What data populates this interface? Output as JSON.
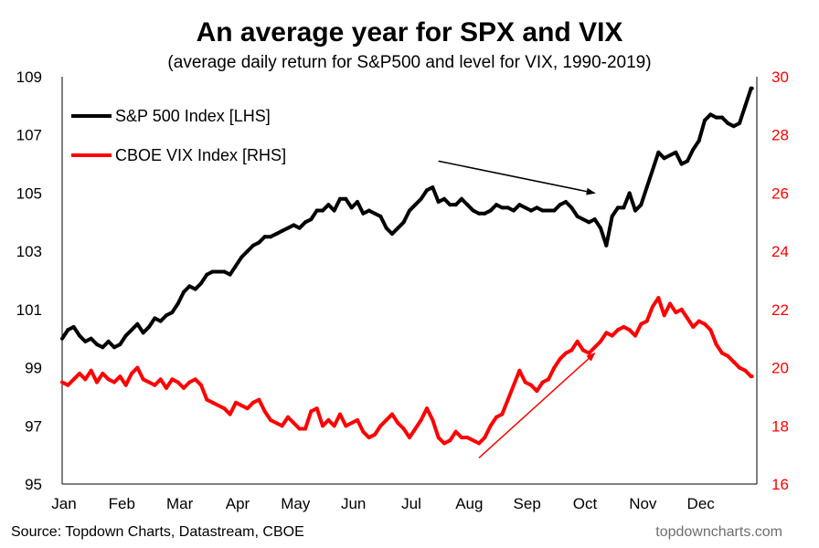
{
  "chart_data": {
    "type": "line",
    "title": "An average year for SPX and VIX",
    "subtitle": "(average daily return for S&P500 and level for VIX, 1990-2019)",
    "source": "Source: Topdown Charts, Datastream, CBOE",
    "watermark": "topdowncharts.com",
    "x_ticks": [
      "Jan",
      "Feb",
      "Mar",
      "Apr",
      "May",
      "Jun",
      "Jul",
      "Aug",
      "Sep",
      "Oct",
      "Nov",
      "Dec"
    ],
    "y_left": {
      "ticks": [
        "95",
        "97",
        "99",
        "101",
        "103",
        "105",
        "107",
        "109"
      ],
      "range": [
        95,
        109
      ]
    },
    "y_right": {
      "ticks": [
        "16",
        "18",
        "20",
        "22",
        "24",
        "26",
        "28",
        "30"
      ],
      "range": [
        16,
        30
      ]
    },
    "legend_placement": "top-left",
    "colors": {
      "spx": "#000000",
      "vix": "#ff0000"
    },
    "series": [
      {
        "name": "S&P 500 Index [LHS]",
        "axis": "left",
        "x": [
          0,
          0.1,
          0.2,
          0.3,
          0.4,
          0.5,
          0.6,
          0.7,
          0.8,
          0.9,
          1.0,
          1.1,
          1.2,
          1.3,
          1.4,
          1.5,
          1.6,
          1.7,
          1.8,
          1.9,
          2.0,
          2.1,
          2.2,
          2.3,
          2.4,
          2.5,
          2.6,
          2.7,
          2.8,
          2.9,
          3.0,
          3.1,
          3.2,
          3.3,
          3.4,
          3.5,
          3.6,
          3.7,
          3.8,
          3.9,
          4.0,
          4.1,
          4.2,
          4.3,
          4.4,
          4.5,
          4.6,
          4.7,
          4.8,
          4.9,
          5.0,
          5.1,
          5.2,
          5.3,
          5.4,
          5.5,
          5.6,
          5.7,
          5.8,
          5.9,
          6.0,
          6.1,
          6.2,
          6.3,
          6.4,
          6.5,
          6.6,
          6.7,
          6.8,
          6.9,
          7.0,
          7.1,
          7.2,
          7.3,
          7.4,
          7.5,
          7.6,
          7.7,
          7.8,
          7.9,
          8.0,
          8.1,
          8.2,
          8.3,
          8.4,
          8.5,
          8.6,
          8.7,
          8.8,
          8.9,
          9.0,
          9.1,
          9.2,
          9.3,
          9.4,
          9.5,
          9.6,
          9.7,
          9.8,
          9.9,
          10.0,
          10.1,
          10.2,
          10.3,
          10.4,
          10.5,
          10.6,
          10.7,
          10.8,
          10.9,
          11.0,
          11.1,
          11.2,
          11.3,
          11.4,
          11.5,
          11.6,
          11.7,
          11.8,
          11.9
        ],
        "values": [
          100.0,
          100.3,
          100.4,
          100.1,
          99.9,
          100.0,
          99.8,
          99.7,
          99.9,
          99.7,
          99.8,
          100.1,
          100.3,
          100.5,
          100.2,
          100.4,
          100.7,
          100.6,
          100.8,
          100.9,
          101.2,
          101.6,
          101.8,
          101.7,
          101.9,
          102.2,
          102.3,
          102.3,
          102.3,
          102.2,
          102.5,
          102.8,
          103.0,
          103.2,
          103.3,
          103.5,
          103.5,
          103.6,
          103.7,
          103.8,
          103.9,
          103.8,
          104.0,
          104.1,
          104.4,
          104.4,
          104.6,
          104.4,
          104.8,
          104.8,
          104.5,
          104.7,
          104.3,
          104.4,
          104.3,
          104.2,
          103.8,
          103.6,
          103.8,
          104.0,
          104.4,
          104.6,
          104.8,
          105.1,
          105.2,
          104.7,
          104.8,
          104.6,
          104.6,
          104.8,
          104.6,
          104.4,
          104.3,
          104.3,
          104.4,
          104.6,
          104.5,
          104.5,
          104.4,
          104.6,
          104.5,
          104.4,
          104.5,
          104.4,
          104.4,
          104.4,
          104.6,
          104.7,
          104.5,
          104.2,
          104.1,
          104.0,
          104.1,
          103.8,
          103.2,
          104.2,
          104.5,
          104.5,
          105.0,
          104.4,
          104.6,
          105.2,
          105.8,
          106.4,
          106.2,
          106.3,
          106.4,
          106.0,
          106.1,
          106.5,
          106.8,
          107.5,
          107.7,
          107.6,
          107.6,
          107.4,
          107.3,
          107.4,
          108.0,
          108.6
        ],
        "marks": [
          "spx-0",
          "spx-1",
          "spx-2",
          "spx-3",
          "spx-4",
          "spx-5",
          "spx-6",
          "spx-7",
          "spx-8",
          "spx-9",
          "spx-10",
          "spx-11",
          "spx-12",
          "spx-13",
          "spx-14",
          "spx-15",
          "spx-16",
          "spx-17",
          "spx-18",
          "spx-19",
          "spx-20",
          "spx-21",
          "spx-22",
          "spx-23",
          "spx-24",
          "spx-25",
          "spx-26",
          "spx-27",
          "spx-28",
          "spx-29",
          "spx-30",
          "spx-31",
          "spx-32",
          "spx-33",
          "spx-34",
          "spx-35",
          "spx-36",
          "spx-37",
          "spx-38",
          "spx-39",
          "spx-40",
          "spx-41",
          "spx-42",
          "spx-43",
          "spx-44",
          "spx-45",
          "spx-46",
          "spx-47",
          "spx-48",
          "spx-49",
          "spx-50",
          "spx-51",
          "spx-52",
          "spx-53",
          "spx-54",
          "spx-55",
          "spx-56",
          "spx-57",
          "spx-58",
          "spx-59",
          "spx-60",
          "spx-61",
          "spx-62",
          "spx-63",
          "spx-64",
          "spx-65",
          "spx-66",
          "spx-67",
          "spx-68",
          "spx-69",
          "spx-70",
          "spx-71",
          "spx-72",
          "spx-73",
          "spx-74",
          "spx-75",
          "spx-76",
          "spx-77",
          "spx-78",
          "spx-79",
          "spx-80",
          "spx-81",
          "spx-82",
          "spx-83",
          "spx-84",
          "spx-85",
          "spx-86",
          "spx-87",
          "spx-88",
          "spx-89",
          "spx-90",
          "spx-91",
          "spx-92",
          "spx-93",
          "spx-94",
          "spx-95",
          "spx-96",
          "spx-97",
          "spx-98",
          "spx-99",
          "spx-100",
          "spx-101",
          "spx-102",
          "spx-103",
          "spx-104",
          "spx-105",
          "spx-106",
          "spx-107",
          "spx-108",
          "spx-109",
          "spx-110",
          "spx-111",
          "spx-112",
          "spx-113",
          "spx-114",
          "spx-115",
          "spx-116",
          "spx-117",
          "spx-118",
          "spx-119"
        ]
      },
      {
        "name": "CBOE VIX Index [RHS]",
        "axis": "right",
        "x": [
          0,
          0.1,
          0.2,
          0.3,
          0.4,
          0.5,
          0.6,
          0.7,
          0.8,
          0.9,
          1.0,
          1.1,
          1.2,
          1.3,
          1.4,
          1.5,
          1.6,
          1.7,
          1.8,
          1.9,
          2.0,
          2.1,
          2.2,
          2.3,
          2.4,
          2.5,
          2.6,
          2.7,
          2.8,
          2.9,
          3.0,
          3.1,
          3.2,
          3.3,
          3.4,
          3.5,
          3.6,
          3.7,
          3.8,
          3.9,
          4.0,
          4.1,
          4.2,
          4.3,
          4.4,
          4.5,
          4.6,
          4.7,
          4.8,
          4.9,
          5.0,
          5.1,
          5.2,
          5.3,
          5.4,
          5.5,
          5.6,
          5.7,
          5.8,
          5.9,
          6.0,
          6.1,
          6.2,
          6.3,
          6.4,
          6.5,
          6.6,
          6.7,
          6.8,
          6.9,
          7.0,
          7.1,
          7.2,
          7.3,
          7.4,
          7.5,
          7.6,
          7.7,
          7.8,
          7.9,
          8.0,
          8.1,
          8.2,
          8.3,
          8.4,
          8.5,
          8.6,
          8.7,
          8.8,
          8.9,
          9.0,
          9.1,
          9.2,
          9.3,
          9.4,
          9.5,
          9.6,
          9.7,
          9.8,
          9.9,
          10.0,
          10.1,
          10.2,
          10.3,
          10.4,
          10.5,
          10.6,
          10.7,
          10.8,
          10.9,
          11.0,
          11.1,
          11.2,
          11.3,
          11.4,
          11.5,
          11.6,
          11.7,
          11.8,
          11.9
        ],
        "values": [
          19.5,
          19.4,
          19.6,
          19.8,
          19.6,
          19.9,
          19.5,
          19.8,
          19.6,
          19.5,
          19.7,
          19.4,
          19.8,
          20.0,
          19.6,
          19.5,
          19.4,
          19.6,
          19.3,
          19.6,
          19.5,
          19.3,
          19.5,
          19.6,
          19.4,
          18.9,
          18.8,
          18.7,
          18.6,
          18.4,
          18.8,
          18.7,
          18.6,
          18.8,
          18.9,
          18.5,
          18.2,
          18.1,
          18.0,
          18.3,
          18.1,
          17.9,
          17.9,
          18.5,
          18.6,
          18.0,
          18.2,
          18.0,
          18.4,
          18.0,
          18.1,
          18.2,
          17.8,
          17.6,
          17.7,
          18.0,
          18.2,
          18.4,
          18.1,
          17.9,
          17.6,
          17.9,
          18.2,
          18.6,
          18.2,
          17.6,
          17.4,
          17.5,
          17.8,
          17.6,
          17.6,
          17.5,
          17.4,
          17.6,
          18.0,
          18.3,
          18.4,
          18.9,
          19.4,
          19.9,
          19.5,
          19.4,
          19.2,
          19.5,
          19.6,
          20.0,
          20.3,
          20.5,
          20.6,
          20.9,
          20.6,
          20.5,
          20.7,
          20.9,
          21.2,
          21.1,
          21.3,
          21.4,
          21.3,
          21.1,
          21.5,
          21.6,
          22.1,
          22.4,
          21.8,
          22.2,
          21.9,
          22.0,
          21.7,
          21.4,
          21.6,
          21.5,
          21.3,
          20.8,
          20.5,
          20.4,
          20.2,
          20.0,
          19.9,
          19.7
        ],
        "marks": [
          "vix-0",
          "vix-1",
          "vix-2",
          "vix-3",
          "vix-4",
          "vix-5",
          "vix-6",
          "vix-7",
          "vix-8",
          "vix-9",
          "vix-10",
          "vix-11",
          "vix-12",
          "vix-13",
          "vix-14",
          "vix-15",
          "vix-16",
          "vix-17",
          "vix-18",
          "vix-19",
          "vix-20",
          "vix-21",
          "vix-22",
          "vix-23",
          "vix-24",
          "vix-25",
          "vix-26",
          "vix-27",
          "vix-28",
          "vix-29",
          "vix-30",
          "vix-31",
          "vix-32",
          "vix-33",
          "vix-34",
          "vix-35",
          "vix-36",
          "vix-37",
          "vix-38",
          "vix-39",
          "vix-40",
          "vix-41",
          "vix-42",
          "vix-43",
          "vix-44",
          "vix-45",
          "vix-46",
          "vix-47",
          "vix-48",
          "vix-49",
          "vix-50",
          "vix-51",
          "vix-52",
          "vix-53",
          "vix-54",
          "vix-55",
          "vix-56",
          "vix-57",
          "vix-58",
          "vix-59",
          "vix-60",
          "vix-61",
          "vix-62",
          "vix-63",
          "vix-64",
          "vix-65",
          "vix-66",
          "vix-67",
          "vix-68",
          "vix-69",
          "vix-70",
          "vix-71",
          "vix-72",
          "vix-73",
          "vix-74",
          "vix-75",
          "vix-76",
          "vix-77",
          "vix-78",
          "vix-79",
          "vix-80",
          "vix-81",
          "vix-82",
          "vix-83",
          "vix-84",
          "vix-85",
          "vix-86",
          "vix-87",
          "vix-88",
          "vix-89",
          "vix-90",
          "vix-91",
          "vix-92",
          "vix-93",
          "vix-94",
          "vix-95",
          "vix-96",
          "vix-97",
          "vix-98",
          "vix-99",
          "vix-100",
          "vix-101",
          "vix-102",
          "vix-103",
          "vix-104",
          "vix-105",
          "vix-106",
          "vix-107",
          "vix-108",
          "vix-109",
          "vix-110",
          "vix-111",
          "vix-112",
          "vix-113",
          "vix-114",
          "vix-115",
          "vix-116",
          "vix-117",
          "vix-118",
          "vix-119"
        ]
      }
    ],
    "annotations": [
      {
        "name": "spx-arrow",
        "axis": "left",
        "color": "#000000",
        "from": [
          6.5,
          106.1
        ],
        "to": [
          9.2,
          105.0
        ]
      },
      {
        "name": "vix-arrow",
        "axis": "right",
        "color": "#ff0000",
        "from": [
          7.2,
          16.9
        ],
        "to": [
          9.2,
          20.5
        ]
      }
    ]
  }
}
